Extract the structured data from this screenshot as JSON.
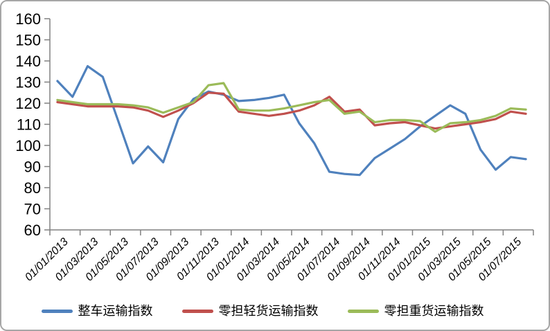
{
  "chart_data": {
    "type": "line",
    "title": "",
    "xlabel": "",
    "ylabel": "",
    "ylim": [
      60,
      160
    ],
    "y_ticks": [
      160,
      150,
      140,
      130,
      120,
      110,
      100,
      90,
      80,
      70,
      60
    ],
    "grid": false,
    "legend_position": "bottom",
    "x_tick_labels": [
      "01/01/2013",
      "01/03/2013",
      "01/05/2013",
      "01/07/2013",
      "01/09/2013",
      "01/11/2013",
      "01/01/2014",
      "01/03/2014",
      "01/05/2014",
      "01/07/2014",
      "01/09/2014",
      "01/11/2014",
      "01/01/2015",
      "01/03/2015",
      "01/05/2015",
      "01/07/2015"
    ],
    "x_months": [
      "01/01/2013",
      "01/02/2013",
      "01/03/2013",
      "01/04/2013",
      "01/05/2013",
      "01/06/2013",
      "01/07/2013",
      "01/08/2013",
      "01/09/2013",
      "01/10/2013",
      "01/11/2013",
      "01/12/2013",
      "01/01/2014",
      "01/02/2014",
      "01/03/2014",
      "01/04/2014",
      "01/05/2014",
      "01/06/2014",
      "01/07/2014",
      "01/08/2014",
      "01/09/2014",
      "01/10/2014",
      "01/11/2014",
      "01/12/2014",
      "01/01/2015",
      "01/02/2015",
      "01/03/2015",
      "01/04/2015",
      "01/05/2015",
      "01/06/2015",
      "01/07/2015",
      "01/08/2015"
    ],
    "series": [
      {
        "name": "整车运输指数",
        "color": "#4F81BD",
        "values": [
          130.5,
          123,
          137.5,
          132.5,
          112,
          91.5,
          99.5,
          92,
          112.5,
          122,
          125.5,
          124,
          121,
          121.5,
          122.5,
          124,
          110.5,
          101,
          87.5,
          86.5,
          86,
          94,
          98.5,
          103,
          109,
          114,
          119,
          115,
          98,
          88.5,
          94.5,
          93.5
        ]
      },
      {
        "name": "零担轻货运输指数",
        "color": "#C0504D",
        "values": [
          120.5,
          119.5,
          118.5,
          118.5,
          118.5,
          118,
          116.5,
          113.5,
          116.5,
          120,
          125,
          124.5,
          116,
          115,
          114,
          115,
          116.5,
          119,
          123,
          116,
          117,
          109.5,
          110.5,
          111,
          109.5,
          108,
          109,
          110,
          111,
          112.5,
          116,
          115
        ]
      },
      {
        "name": "零担重货运输指数",
        "color": "#9BBB59",
        "values": [
          121.5,
          120.5,
          119.5,
          119.5,
          119.5,
          119,
          118,
          115.5,
          118,
          120.5,
          128.5,
          129.5,
          117,
          116.5,
          116.5,
          117.5,
          119,
          120.5,
          121.5,
          115,
          116,
          111,
          112,
          112,
          111.5,
          106.5,
          110.5,
          111,
          112,
          114,
          117.5,
          117
        ]
      }
    ]
  },
  "colors": {
    "axis": "#808080",
    "text": "#000000",
    "border": "#A6A6A6",
    "background": "#FFFFFF"
  }
}
